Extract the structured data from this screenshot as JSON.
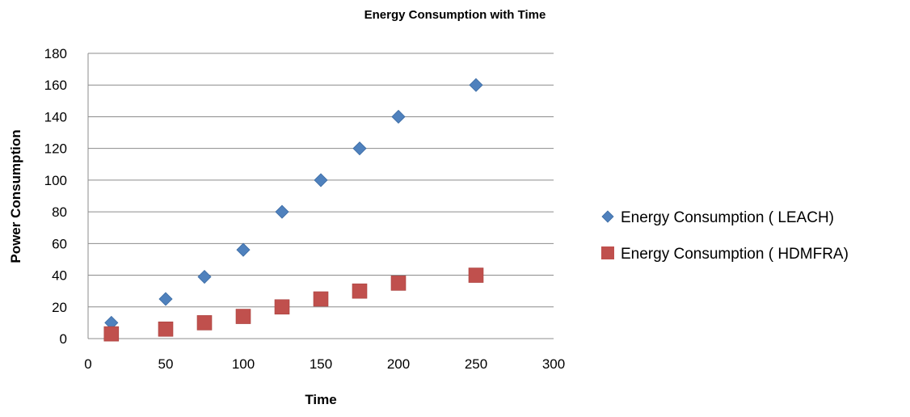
{
  "chart_data": {
    "type": "scatter",
    "title": "Energy Consumption with Time",
    "xlabel": "Time",
    "ylabel": "Power Consumption",
    "xlim": [
      0,
      300
    ],
    "ylim": [
      0,
      180
    ],
    "xticks": [
      "0",
      "50",
      "100",
      "150",
      "200",
      "250",
      "300"
    ],
    "yticks": [
      "0",
      "20",
      "40",
      "60",
      "80",
      "100",
      "120",
      "140",
      "160",
      "180"
    ],
    "grid": "horizontal",
    "legend_position": "right",
    "series": [
      {
        "name": "Energy Consumption ( LEACH)",
        "marker": "diamond",
        "color": "#4F81BD",
        "points": [
          [
            15,
            10
          ],
          [
            50,
            25
          ],
          [
            75,
            39
          ],
          [
            100,
            56
          ],
          [
            125,
            80
          ],
          [
            150,
            100
          ],
          [
            175,
            120
          ],
          [
            200,
            140
          ],
          [
            250,
            160
          ]
        ]
      },
      {
        "name": "Energy Consumption ( HDMFRA)",
        "marker": "square",
        "color": "#C0504D",
        "points": [
          [
            15,
            3
          ],
          [
            50,
            6
          ],
          [
            75,
            10
          ],
          [
            100,
            14
          ],
          [
            125,
            20
          ],
          [
            150,
            25
          ],
          [
            175,
            30
          ],
          [
            200,
            35
          ],
          [
            250,
            40
          ]
        ]
      }
    ]
  }
}
